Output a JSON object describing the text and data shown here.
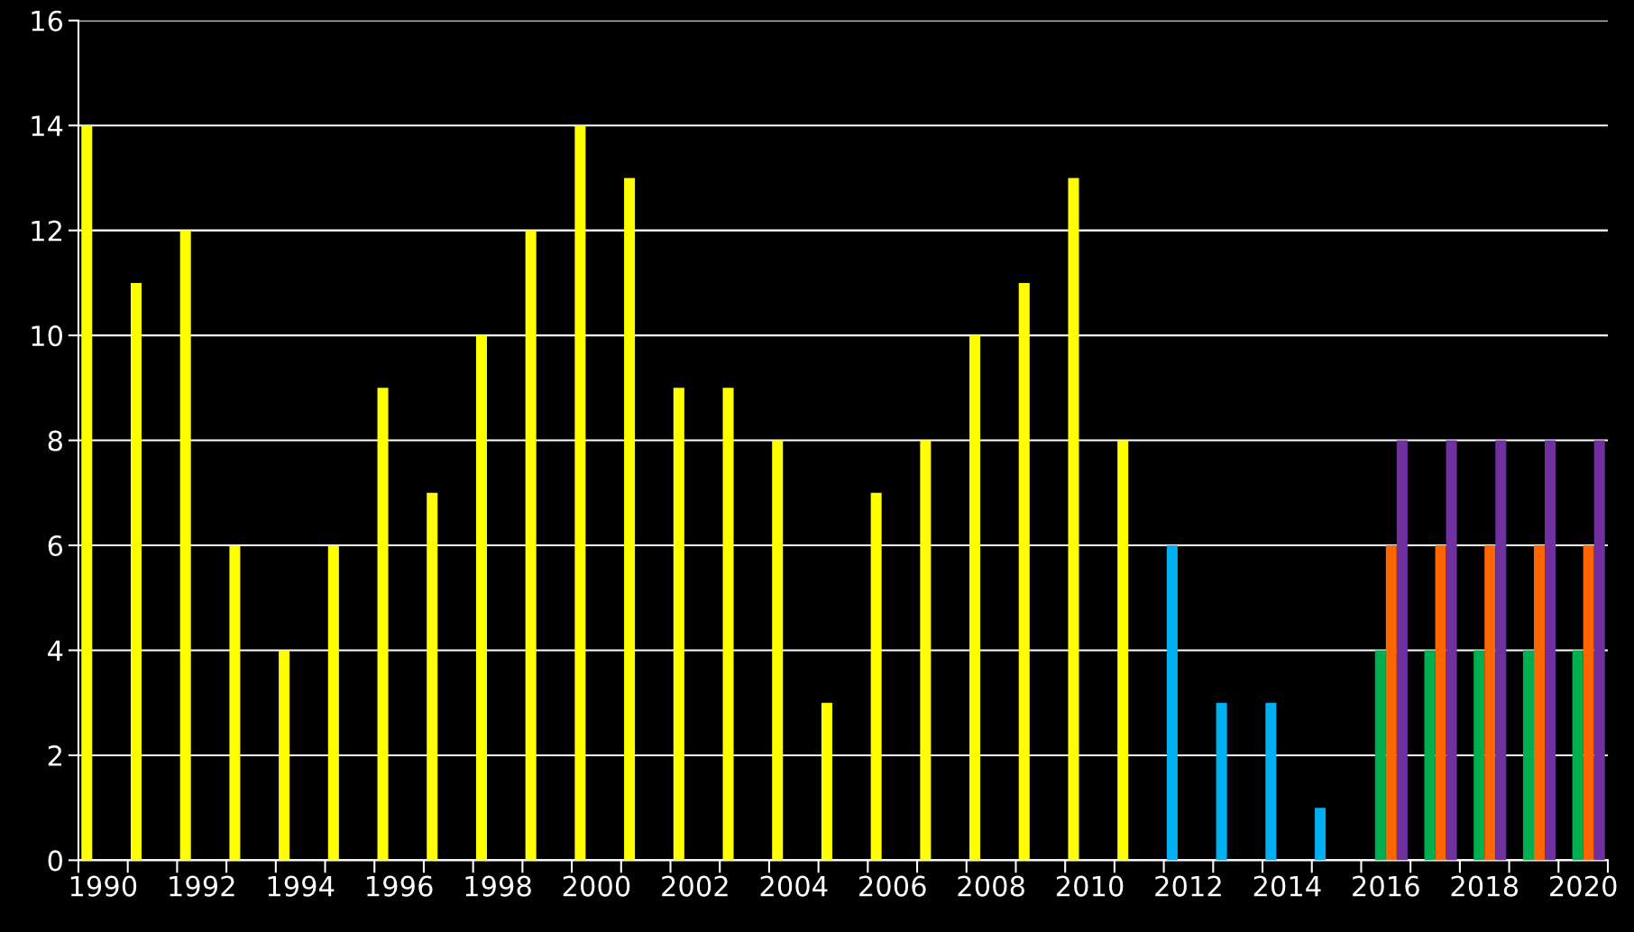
{
  "chart_data": {
    "type": "bar",
    "categories": [
      "1990",
      null,
      "1992",
      null,
      "1994",
      null,
      "1996",
      null,
      "1998",
      null,
      "2000",
      null,
      "2002",
      null,
      "2004",
      null,
      "2006",
      null,
      "2008",
      null,
      "2010",
      null,
      "2012",
      null,
      "2014",
      null,
      "2016",
      null,
      "2018",
      null,
      "2020"
    ],
    "series": [
      {
        "colors": [
          "#ffff00",
          "#ffff00",
          "#ffff00",
          "#ffff00",
          "#ffff00",
          "#ffff00",
          "#ffff00",
          "#ffff00",
          "#ffff00",
          "#ffff00",
          "#ffff00",
          "#ffff00",
          "#ffff00",
          "#ffff00",
          "#ffff00",
          "#ffff00",
          "#ffff00",
          "#ffff00",
          "#ffff00",
          "#ffff00",
          "#ffff00",
          "#ffff00",
          "#00b0f0",
          "#00b0f0",
          "#00b0f0",
          "#00b0f0",
          "#00b0f0",
          "#00b0f0",
          "#00b0f0",
          "#00b0f0",
          "#00b0f0"
        ],
        "values": [
          14,
          11,
          12,
          6,
          4,
          6,
          9,
          7,
          10,
          12,
          14,
          13,
          9,
          9,
          8,
          3,
          7,
          8,
          10,
          11,
          13,
          8,
          6,
          3,
          3,
          1,
          null,
          null,
          null,
          null,
          null
        ]
      },
      {
        "color": "#00b050",
        "values": [
          null,
          null,
          null,
          null,
          null,
          null,
          null,
          null,
          null,
          null,
          null,
          null,
          null,
          null,
          null,
          null,
          null,
          null,
          null,
          null,
          null,
          null,
          null,
          null,
          null,
          null,
          4,
          4,
          4,
          4,
          4
        ]
      },
      {
        "color": "#ff6600",
        "values": [
          null,
          null,
          null,
          null,
          null,
          null,
          null,
          null,
          null,
          null,
          null,
          null,
          null,
          null,
          null,
          null,
          null,
          null,
          null,
          null,
          null,
          null,
          null,
          null,
          null,
          null,
          6,
          6,
          6,
          6,
          6
        ]
      },
      {
        "color": "#7030a0",
        "values": [
          null,
          null,
          null,
          null,
          null,
          null,
          null,
          null,
          null,
          null,
          null,
          null,
          null,
          null,
          null,
          null,
          null,
          null,
          null,
          null,
          null,
          null,
          null,
          null,
          null,
          null,
          8,
          8,
          8,
          8,
          8
        ]
      }
    ],
    "ylim": [
      0,
      16
    ],
    "yticks": [
      0,
      2,
      4,
      6,
      8,
      10,
      12,
      14,
      16
    ],
    "grid": "y"
  }
}
